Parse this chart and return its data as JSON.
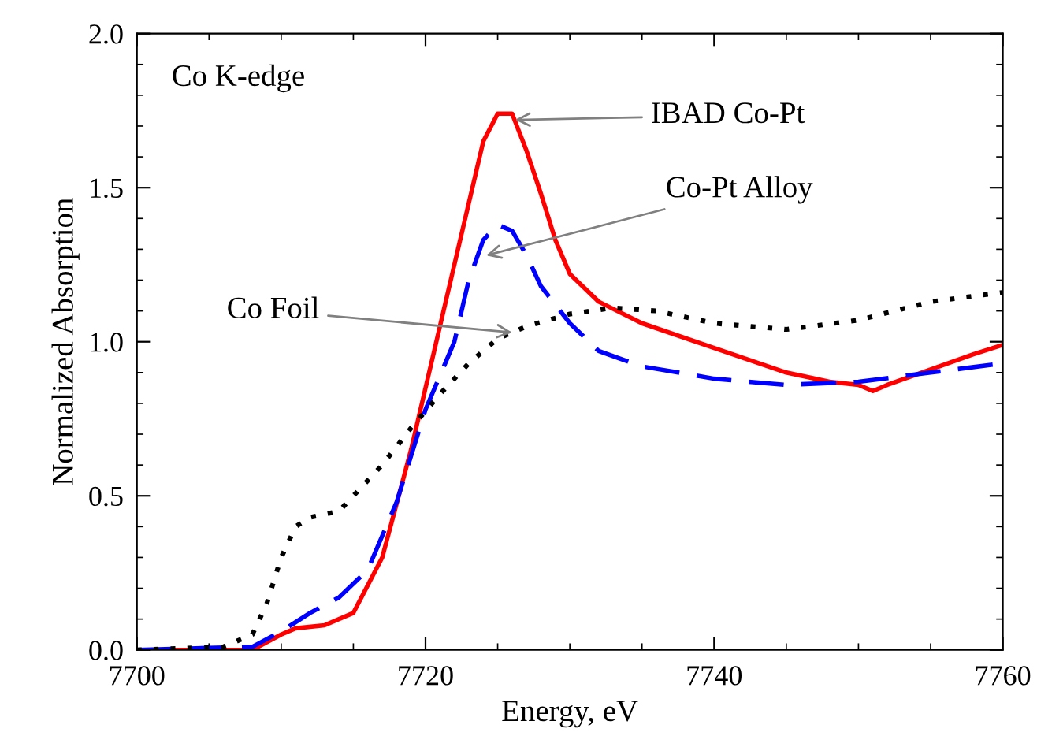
{
  "chart_data": {
    "type": "line",
    "xlabel": "Energy, eV",
    "ylabel": "Normalized Absorption",
    "xlim": [
      7700,
      7760
    ],
    "xticks": [
      7700,
      7720,
      7740,
      7760
    ],
    "ylim": [
      0,
      2.0
    ],
    "yticks": [
      {
        "value": 0,
        "label": "0.0"
      },
      0.5,
      {
        "value": 1,
        "label": "1.0"
      },
      1.5,
      {
        "value": 2,
        "label": "2.0"
      }
    ],
    "grid": false,
    "legend": false,
    "series": [
      {
        "color": "#ff0000",
        "line_style": "solid",
        "x": [
          7700,
          7708,
          7710,
          7711,
          7713,
          7715,
          7717,
          7719,
          7721,
          7723,
          7724,
          7725,
          7726,
          7727,
          7728,
          7729,
          7730,
          7732,
          7735,
          7740,
          7745,
          7748,
          7750,
          7751,
          7752,
          7755,
          7758,
          7760
        ],
        "values": [
          0,
          0.0,
          0.05,
          0.07,
          0.08,
          0.12,
          0.3,
          0.65,
          1.05,
          1.45,
          1.65,
          1.74,
          1.74,
          1.62,
          1.48,
          1.33,
          1.22,
          1.13,
          1.06,
          0.98,
          0.9,
          0.87,
          0.86,
          0.84,
          0.86,
          0.91,
          0.96,
          0.99
        ]
      },
      {
        "color": "#0000ff",
        "line_style": "dashed",
        "x": [
          7700,
          7708,
          7710,
          7712,
          7714,
          7716,
          7718,
          7720,
          7722,
          7723,
          7724,
          7725,
          7726,
          7727,
          7728,
          7730,
          7732,
          7735,
          7740,
          7745,
          7750,
          7755,
          7760
        ],
        "values": [
          0,
          0.01,
          0.06,
          0.12,
          0.17,
          0.26,
          0.48,
          0.78,
          1.0,
          1.2,
          1.33,
          1.38,
          1.36,
          1.28,
          1.18,
          1.06,
          0.97,
          0.92,
          0.88,
          0.86,
          0.87,
          0.9,
          0.93
        ]
      },
      {
        "color": "#000000",
        "line_style": "dotted",
        "x": [
          7700,
          7706,
          7708,
          7709,
          7710,
          7711,
          7712,
          7714,
          7715,
          7717,
          7719,
          7721,
          7723,
          7725,
          7727,
          7730,
          7733,
          7736,
          7740,
          7745,
          7750,
          7755,
          7760
        ],
        "values": [
          0.0,
          0.01,
          0.05,
          0.15,
          0.3,
          0.4,
          0.43,
          0.45,
          0.5,
          0.6,
          0.72,
          0.83,
          0.93,
          1.01,
          1.05,
          1.09,
          1.11,
          1.1,
          1.06,
          1.04,
          1.07,
          1.13,
          1.16
        ]
      }
    ],
    "annotations": [
      "Co K-edge",
      {
        "text": "IBAD Co-Pt",
        "x": 7726.2,
        "y": 1.72
      },
      {
        "text": "Co-Pt Alloy",
        "x": 7724.2,
        "y": 1.28
      },
      {
        "text": "Co Foil",
        "x": 7726,
        "y": 1.03
      }
    ]
  }
}
